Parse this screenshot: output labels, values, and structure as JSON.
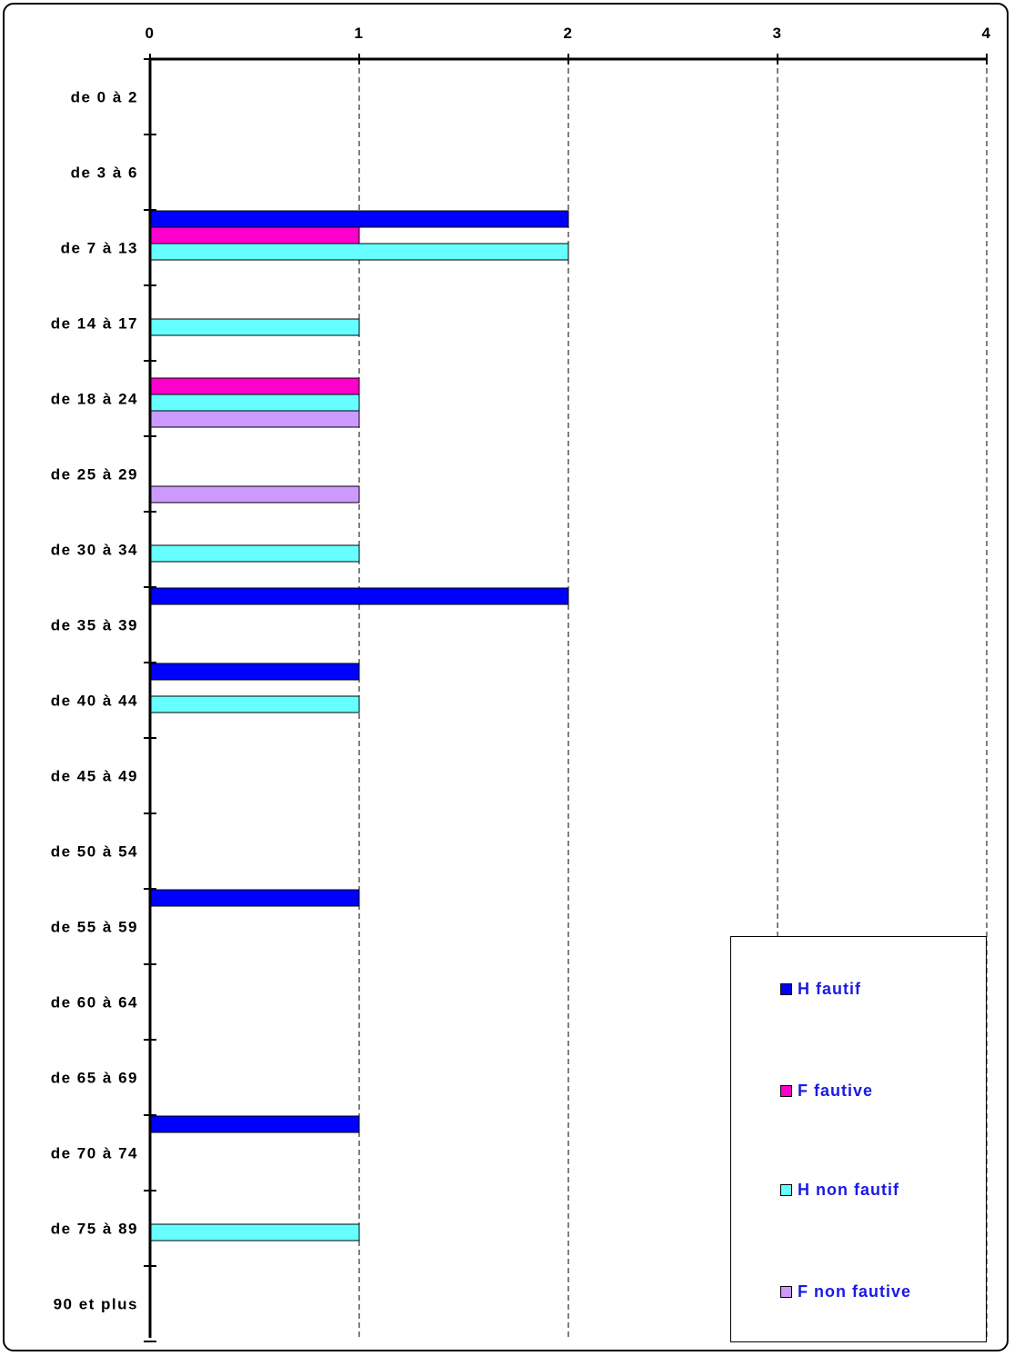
{
  "chart_data": {
    "type": "bar",
    "orientation": "horizontal",
    "categories": [
      "de 0 à 2",
      "de 3 à 6",
      "de 7 à 13",
      "de 14 à 17",
      "de 18 à 24",
      "de 25 à 29",
      "de 30 à 34",
      "de 35 à 39",
      "de 40 à 44",
      "de 45 à 49",
      "de 50 à 54",
      "de 55 à 59",
      "de 60 à 64",
      "de 65 à 69",
      "de 70 à 74",
      "de 75 à 89",
      "90 et plus"
    ],
    "x_ticks": [
      "0",
      "1",
      "2",
      "3",
      "4"
    ],
    "xlim": [
      0,
      4
    ],
    "x_axis_position": "top",
    "grid": "vertical dashed",
    "legend_position": "bottom-right",
    "series": [
      {
        "name": "H fautif",
        "color": "#0000ff",
        "values": [
          0,
          0,
          2,
          0,
          0,
          0,
          0,
          2,
          1,
          0,
          0,
          1,
          0,
          0,
          1,
          0,
          0
        ]
      },
      {
        "name": "F fautive",
        "color": "#ff00cc",
        "values": [
          0,
          0,
          1,
          0,
          1,
          0,
          0,
          0,
          0,
          0,
          0,
          0,
          0,
          0,
          0,
          0,
          0
        ]
      },
      {
        "name": "H non fautif",
        "color": "#66ffff",
        "values": [
          0,
          0,
          2,
          1,
          1,
          0,
          1,
          0,
          1,
          0,
          0,
          0,
          0,
          0,
          0,
          1,
          0
        ]
      },
      {
        "name": "F non fautive",
        "color": "#cc99ff",
        "values": [
          0,
          0,
          0,
          0,
          1,
          1,
          0,
          0,
          0,
          0,
          0,
          0,
          0,
          0,
          0,
          0,
          0
        ]
      }
    ]
  },
  "colors": {
    "legend_text": "#1a1ae6",
    "axis": "#000000",
    "grid": "#000000"
  }
}
